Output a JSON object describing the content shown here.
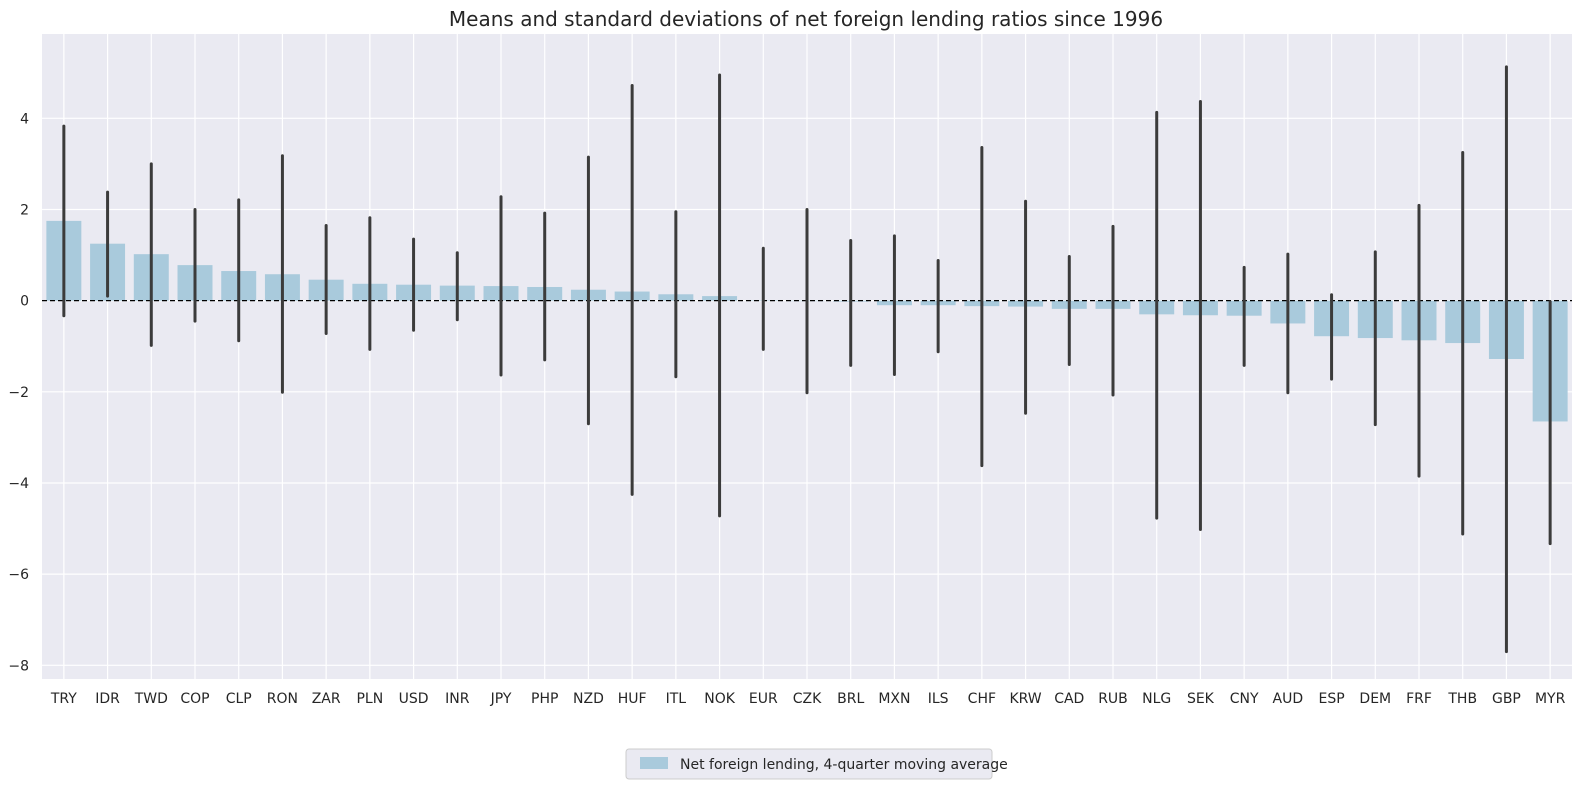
{
  "chart_data": {
    "type": "bar",
    "title": "Means and standard deviations of net foreign lending ratios since 1996",
    "xlabel": "",
    "ylabel": "",
    "ylim": [
      -8.3,
      5.85
    ],
    "yticks": [
      -8,
      -6,
      -4,
      -2,
      0,
      2,
      4
    ],
    "ytick_labels": [
      "−8",
      "−6",
      "−4",
      "−2",
      "0",
      "2",
      "4"
    ],
    "grid": true,
    "zero_line": "dashed",
    "legend_position": "bottom-center",
    "categories": [
      "TRY",
      "IDR",
      "TWD",
      "COP",
      "CLP",
      "RON",
      "ZAR",
      "PLN",
      "USD",
      "INR",
      "JPY",
      "PHP",
      "NZD",
      "HUF",
      "ITL",
      "NOK",
      "EUR",
      "CZK",
      "BRL",
      "MXN",
      "ILS",
      "CHF",
      "KRW",
      "CAD",
      "RUB",
      "NLG",
      "SEK",
      "CNY",
      "AUD",
      "ESP",
      "DEM",
      "FRF",
      "THB",
      "GBP",
      "MYR"
    ],
    "series": [
      {
        "name": "Net foreign lending, 4-quarter moving average",
        "color": "#a9cadc",
        "values": [
          1.75,
          1.25,
          1.02,
          0.78,
          0.65,
          0.58,
          0.46,
          0.37,
          0.35,
          0.33,
          0.32,
          0.3,
          0.24,
          0.2,
          0.14,
          0.1,
          0.01,
          0.0,
          -0.02,
          -0.1,
          -0.1,
          -0.12,
          -0.13,
          -0.18,
          -0.18,
          -0.3,
          -0.32,
          -0.33,
          -0.5,
          -0.78,
          -0.82,
          -0.87,
          -0.93,
          -1.28,
          -2.65
        ],
        "err_low": [
          -0.33,
          0.1,
          -0.98,
          -0.45,
          -0.88,
          -2.01,
          -0.72,
          -1.07,
          -0.65,
          -0.42,
          -1.63,
          -1.3,
          -2.7,
          -4.25,
          -1.67,
          -4.72,
          -1.07,
          -2.02,
          -1.42,
          -1.62,
          -1.12,
          -3.62,
          -2.47,
          -1.4,
          -2.07,
          -4.77,
          -5.02,
          -1.42,
          -2.02,
          -1.72,
          -2.72,
          -3.85,
          -5.12,
          -7.7,
          -5.33
        ],
        "err_high": [
          3.83,
          2.38,
          3.0,
          2.0,
          2.21,
          3.18,
          1.65,
          1.82,
          1.35,
          1.05,
          2.28,
          1.92,
          3.15,
          4.72,
          1.95,
          4.95,
          1.15,
          2.0,
          1.32,
          1.42,
          0.88,
          3.36,
          2.18,
          0.97,
          1.63,
          4.13,
          4.37,
          0.73,
          1.02,
          0.13,
          1.07,
          2.09,
          3.25,
          5.13,
          -0.02
        ]
      }
    ],
    "error_bar_color": "#3b3b3b"
  }
}
